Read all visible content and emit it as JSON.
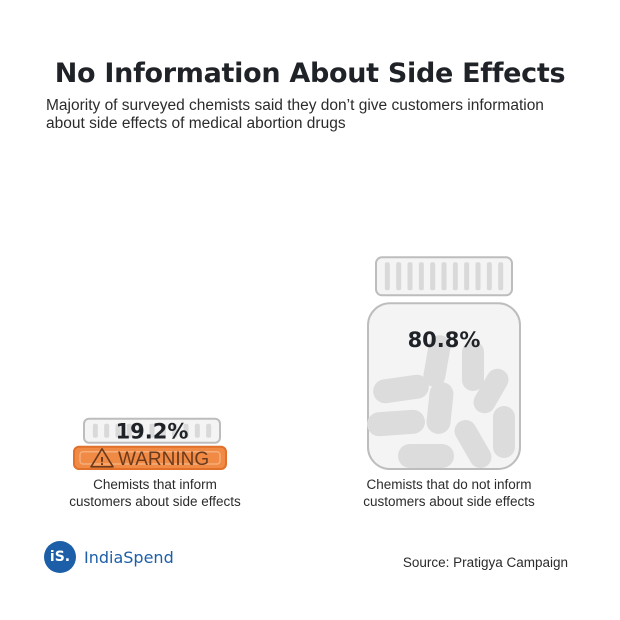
{
  "title": "No Information About Side Effects",
  "subtitle": "Majority of surveyed chemists said they don’t give customers information about side effects of medical abortion drugs",
  "chart_data": {
    "type": "bar",
    "categories": [
      "Chemists that inform customers about side effects",
      "Chemists that do not inform customers about side effects"
    ],
    "values": [
      19.2,
      80.8
    ],
    "value_labels": [
      "19.2%",
      "80.8%"
    ],
    "unit": "%",
    "bar_style": "pill bottles",
    "warning_label": "WARNING"
  },
  "captions": {
    "left_line1": "Chemists that inform",
    "left_line2": "customers about side effects",
    "right_line1": "Chemists that do not inform",
    "right_line2": "customers about side effects"
  },
  "logo": {
    "mark": "iS.",
    "name": "IndiaSpend"
  },
  "source": "Source: Pratigya Campaign",
  "colors": {
    "bottle_fill": "#f4f4f4",
    "bottle_stroke": "#bdbdbd",
    "pill": "#dcdcdc",
    "warning_band": "#f08a44",
    "logo": "#1c5fa8"
  }
}
